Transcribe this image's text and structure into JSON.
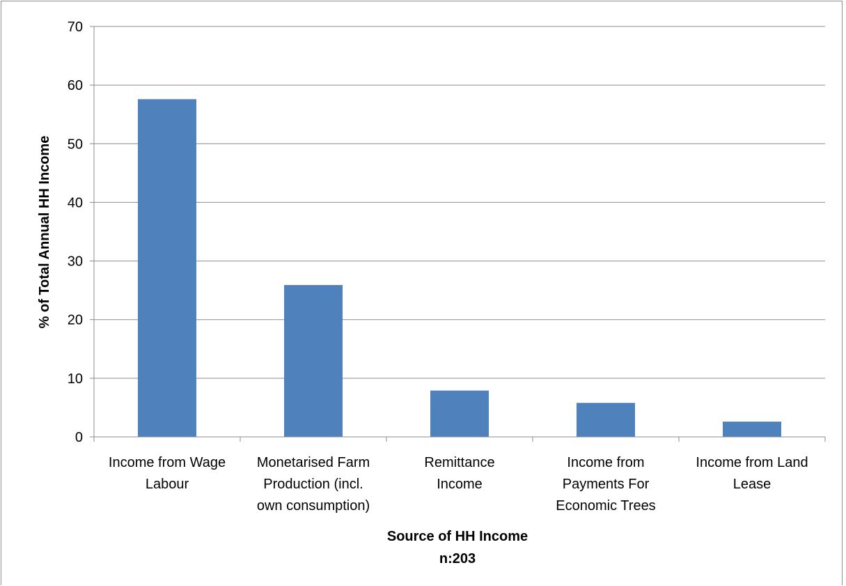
{
  "chart_data": {
    "type": "bar",
    "title": "",
    "categories": [
      "Income from Wage Labour",
      "Monetarised Farm Production (incl. own consumption)",
      "Remittance Income",
      "Income from Payments For Economic Trees",
      "Income from Land Lease"
    ],
    "category_lines": [
      [
        "Income from Wage",
        "Labour"
      ],
      [
        "Monetarised Farm",
        "Production (incl.",
        "own consumption)"
      ],
      [
        "Remittance",
        "Income"
      ],
      [
        "Income from",
        "Payments For",
        "Economic Trees"
      ],
      [
        "Income from Land",
        "Lease"
      ]
    ],
    "values": [
      57.6,
      25.9,
      7.9,
      5.8,
      2.6
    ],
    "xlabel": "Source of HH Income",
    "xlabel_note": "n:203",
    "ylabel": "% of Total Annual HH Income",
    "ylim": [
      0,
      70
    ],
    "yticks": [
      0,
      10,
      20,
      30,
      40,
      50,
      60,
      70
    ],
    "grid": true,
    "legend": "none",
    "colors": {
      "bar": "#4f81bd",
      "grid": "#8c8c8c",
      "axis": "#8c8c8c"
    }
  }
}
